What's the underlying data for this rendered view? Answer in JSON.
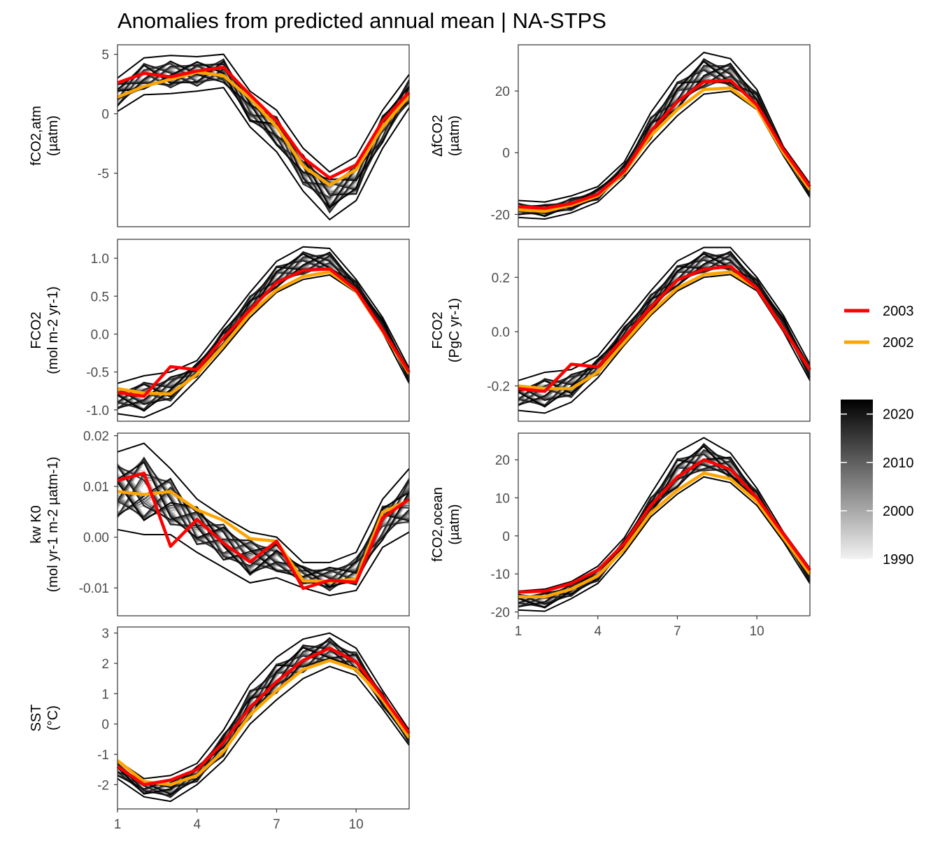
{
  "title": "Anomalies from predicted annual mean | NA-STPS",
  "colors": {
    "highlight_2003": "#ff0000",
    "highlight_2002": "#ffa500",
    "background_gradient": [
      "#f2f2f2",
      "#000000"
    ]
  },
  "legend": {
    "highlight": [
      {
        "label": "2003",
        "color": "#ff0000"
      },
      {
        "label": "2002",
        "color": "#ffa500"
      }
    ],
    "colorbar": {
      "labels": [
        "2020",
        "2010",
        "2000",
        "1990"
      ],
      "range": [
        1990,
        2023
      ]
    }
  },
  "x_ticks": [
    "1",
    "4",
    "7",
    "10"
  ],
  "chart_data": [
    {
      "type": "line",
      "ylabel_lines": [
        "fCO2,atm",
        "(µatm)"
      ],
      "ylim": [
        -9.5,
        5.8
      ],
      "yticks": [
        5,
        0,
        -5
      ],
      "ytick_labels": [
        "5",
        "0",
        "-5"
      ],
      "x": [
        1,
        2,
        3,
        4,
        5,
        6,
        7,
        8,
        9,
        10,
        11,
        12
      ],
      "series": [
        {
          "name": "2003",
          "values": [
            2.6,
            3.4,
            3.1,
            3.6,
            3.9,
            1.6,
            -0.6,
            -3.7,
            -5.4,
            -4.3,
            -0.6,
            1.8
          ]
        },
        {
          "name": "2002",
          "values": [
            1.4,
            2.3,
            2.9,
            3.5,
            3.2,
            1.3,
            -1.1,
            -4.4,
            -6.0,
            -4.7,
            -1.1,
            1.5
          ]
        }
      ],
      "background_range": {
        "low": [
          0.2,
          1.6,
          1.7,
          1.9,
          2.2,
          -1.1,
          -3.2,
          -6.5,
          -8.9,
          -7.3,
          -2.9,
          0.5
        ],
        "high": [
          3.0,
          4.7,
          4.9,
          4.8,
          5.0,
          1.9,
          0.3,
          -2.9,
          -4.9,
          -3.6,
          0.3,
          3.3
        ]
      }
    },
    {
      "type": "line",
      "ylabel_lines": [
        "ΔfCO2",
        "(µatm)"
      ],
      "ylim": [
        -24,
        35
      ],
      "yticks": [
        20,
        0,
        -20
      ],
      "ytick_labels": [
        "20",
        "0",
        "-20"
      ],
      "x": [
        1,
        2,
        3,
        4,
        5,
        6,
        7,
        8,
        9,
        10,
        11,
        12
      ],
      "series": [
        {
          "name": "2003",
          "values": [
            -17.5,
            -18.0,
            -16.5,
            -13.5,
            -6.0,
            7.0,
            16.5,
            23.0,
            23.5,
            15.5,
            1.0,
            -11.0
          ]
        },
        {
          "name": "2002",
          "values": [
            -18.5,
            -19.0,
            -17.0,
            -14.0,
            -6.5,
            5.5,
            14.0,
            20.5,
            21.0,
            14.5,
            0.0,
            -12.0
          ]
        }
      ],
      "background_range": {
        "low": [
          -21,
          -21.5,
          -19.5,
          -16,
          -8,
          3,
          12,
          19,
          20,
          14,
          -1,
          -14.5
        ],
        "high": [
          -15.5,
          -16,
          -14,
          -11,
          -3,
          13,
          25,
          32.5,
          30.5,
          20.5,
          2,
          -10
        ]
      }
    },
    {
      "type": "line",
      "ylabel_lines": [
        "FCO2",
        "(mol m-2 yr-1)"
      ],
      "ylim": [
        -1.15,
        1.25
      ],
      "yticks": [
        1.0,
        0.5,
        0.0,
        -0.5,
        -1.0
      ],
      "ytick_labels": [
        "1.0",
        "0.5",
        "0.0",
        "-0.5",
        "-1.0"
      ],
      "x": [
        1,
        2,
        3,
        4,
        5,
        6,
        7,
        8,
        9,
        10,
        11,
        12
      ],
      "series": [
        {
          "name": "2003",
          "values": [
            -0.77,
            -0.82,
            -0.43,
            -0.47,
            -0.05,
            0.32,
            0.68,
            0.84,
            0.86,
            0.58,
            0.05,
            -0.5
          ]
        },
        {
          "name": "2002",
          "values": [
            -0.72,
            -0.78,
            -0.79,
            -0.53,
            -0.15,
            0.27,
            0.58,
            0.76,
            0.82,
            0.57,
            0.04,
            -0.52
          ]
        }
      ],
      "background_range": {
        "low": [
          -1.05,
          -1.1,
          -0.95,
          -0.6,
          -0.2,
          0.22,
          0.55,
          0.72,
          0.78,
          0.55,
          0.02,
          -0.65
        ],
        "high": [
          -0.65,
          -0.55,
          -0.5,
          -0.35,
          0.1,
          0.55,
          0.96,
          1.15,
          1.13,
          0.72,
          0.22,
          -0.45
        ]
      }
    },
    {
      "type": "line",
      "ylabel_lines": [
        "FCO2",
        "(PgC yr-1)"
      ],
      "ylim": [
        -0.33,
        0.34
      ],
      "yticks": [
        0.2,
        0.0,
        -0.2
      ],
      "ytick_labels": [
        "0.2",
        "0.0",
        "-0.2"
      ],
      "x": [
        1,
        2,
        3,
        4,
        5,
        6,
        7,
        8,
        9,
        10,
        11,
        12
      ],
      "series": [
        {
          "name": "2003",
          "values": [
            -0.21,
            -0.22,
            -0.12,
            -0.13,
            -0.02,
            0.09,
            0.19,
            0.23,
            0.24,
            0.16,
            0.01,
            -0.14
          ]
        },
        {
          "name": "2002",
          "values": [
            -0.2,
            -0.21,
            -0.21,
            -0.15,
            -0.04,
            0.07,
            0.16,
            0.21,
            0.22,
            0.16,
            0.01,
            -0.14
          ]
        }
      ],
      "background_range": {
        "low": [
          -0.29,
          -0.3,
          -0.26,
          -0.17,
          -0.05,
          0.06,
          0.15,
          0.2,
          0.21,
          0.15,
          0.0,
          -0.18
        ],
        "high": [
          -0.18,
          -0.15,
          -0.14,
          -0.09,
          0.03,
          0.15,
          0.26,
          0.31,
          0.31,
          0.2,
          0.06,
          -0.12
        ]
      }
    },
    {
      "type": "line",
      "ylabel_lines": [
        "kw K0",
        "(mol yr-1 m-2 µatm-1)"
      ],
      "ylim": [
        -0.0155,
        0.0205
      ],
      "yticks": [
        0.02,
        0.01,
        0.0,
        -0.01
      ],
      "ytick_labels": [
        "0.02",
        "0.01",
        "0.00",
        "-0.01"
      ],
      "x": [
        1,
        2,
        3,
        4,
        5,
        6,
        7,
        8,
        9,
        10,
        11,
        12
      ],
      "series": [
        {
          "name": "2003",
          "values": [
            0.0112,
            0.0126,
            -0.0018,
            0.0035,
            -0.0012,
            -0.0049,
            -0.0008,
            -0.0101,
            -0.0085,
            -0.0089,
            0.0038,
            0.0075
          ]
        },
        {
          "name": "2002",
          "values": [
            0.009,
            0.0084,
            0.009,
            0.0054,
            0.0033,
            -0.0003,
            -0.0008,
            -0.0086,
            -0.0087,
            -0.0083,
            0.0049,
            0.0073
          ]
        }
      ],
      "background_range": {
        "low": [
          0.0015,
          0.0005,
          0.0005,
          -0.003,
          -0.006,
          -0.009,
          -0.008,
          -0.01,
          -0.0115,
          -0.0105,
          -0.002,
          0.001
        ],
        "high": [
          0.0168,
          0.0185,
          0.0135,
          0.0075,
          0.004,
          0.001,
          0.0,
          -0.005,
          -0.005,
          -0.003,
          0.0075,
          0.0135
        ]
      }
    },
    {
      "type": "line",
      "ylabel_lines": [
        "fCO2,ocean",
        "(µatm)"
      ],
      "ylim": [
        -21,
        27
      ],
      "yticks": [
        20,
        10,
        0,
        -10,
        -20
      ],
      "ytick_labels": [
        "20",
        "10",
        "0",
        "-10",
        "-20"
      ],
      "x": [
        1,
        2,
        3,
        4,
        5,
        6,
        7,
        8,
        9,
        10,
        11,
        12
      ],
      "series": [
        {
          "name": "2003",
          "values": [
            -14.8,
            -14.5,
            -12.5,
            -9.0,
            -2.0,
            8.0,
            15.5,
            20.0,
            17.5,
            10.0,
            0.5,
            -9.0
          ]
        },
        {
          "name": "2002",
          "values": [
            -16.0,
            -16.0,
            -14.0,
            -10.5,
            -3.5,
            6.0,
            12.0,
            16.5,
            15.0,
            9.0,
            -0.5,
            -10.0
          ]
        }
      ],
      "background_range": {
        "low": [
          -19.5,
          -19.8,
          -16.5,
          -12.5,
          -4.5,
          5.0,
          11.0,
          15.5,
          14.0,
          8.0,
          -1.5,
          -12.5
        ],
        "high": [
          -14.5,
          -14.0,
          -12.0,
          -8.0,
          -0.5,
          11.0,
          22.0,
          25.8,
          21.8,
          12.5,
          1.0,
          -8.5
        ]
      }
    },
    {
      "type": "line",
      "ylabel_lines": [
        "SST",
        "(°C)"
      ],
      "ylim": [
        -2.8,
        3.2
      ],
      "yticks": [
        3,
        2,
        1,
        0,
        -1,
        -2
      ],
      "ytick_labels": [
        "3",
        "2",
        "1",
        "0",
        "-1",
        "-2"
      ],
      "x": [
        1,
        2,
        3,
        4,
        5,
        6,
        7,
        8,
        9,
        10,
        11,
        12
      ],
      "series": [
        {
          "name": "2003",
          "values": [
            -1.4,
            -2.0,
            -1.85,
            -1.5,
            -0.6,
            0.55,
            1.4,
            2.1,
            2.5,
            2.05,
            0.9,
            -0.3
          ]
        },
        {
          "name": "2002",
          "values": [
            -1.2,
            -1.9,
            -2.0,
            -1.7,
            -0.9,
            0.3,
            1.1,
            1.8,
            2.1,
            1.8,
            0.8,
            -0.45
          ]
        }
      ],
      "background_range": {
        "low": [
          -1.8,
          -2.4,
          -2.55,
          -2.0,
          -1.2,
          0.0,
          0.8,
          1.5,
          1.9,
          1.6,
          0.5,
          -0.7
        ],
        "high": [
          -1.2,
          -1.8,
          -1.7,
          -1.3,
          -0.2,
          1.3,
          2.2,
          2.8,
          3.0,
          2.5,
          1.1,
          -0.2
        ]
      }
    }
  ]
}
